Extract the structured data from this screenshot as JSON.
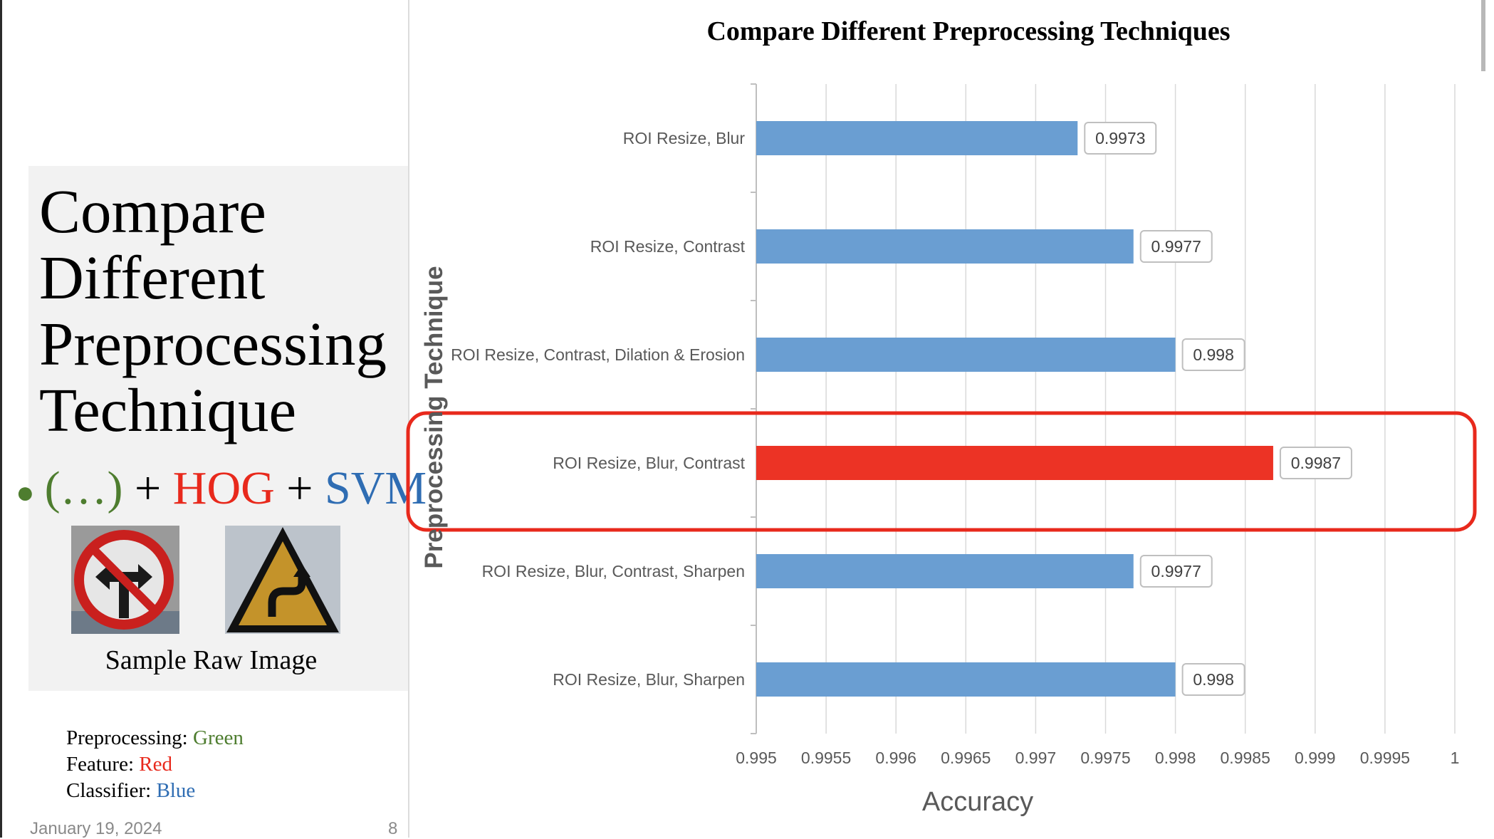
{
  "slide": {
    "heading_lines": [
      "Compare",
      "Different",
      "Preprocessing",
      "Technique"
    ],
    "bullet": {
      "part1": "(…)",
      "plus1": "+",
      "part2": "HOG",
      "plus2": "+",
      "part3": "SVM"
    },
    "sample_caption": "Sample Raw Image",
    "legend": [
      {
        "label": "Preprocessing:",
        "value": "Green",
        "color": "#4e7d2f"
      },
      {
        "label": "Feature:",
        "value": "Red",
        "color": "#e8291c"
      },
      {
        "label": "Classifier:",
        "value": "Blue",
        "color": "#2f6db3"
      }
    ],
    "date": "January 19, 2024",
    "page_number": "8",
    "sample_images": [
      "no-left-right-turn-sign-icon",
      "curve-warning-sign-icon"
    ]
  },
  "chart_data": {
    "type": "bar",
    "orientation": "horizontal",
    "title": "Compare Different Preprocessing Techniques",
    "xlabel": "Accuracy",
    "ylabel": "Preprocessing Technique",
    "xlim": [
      0.995,
      1
    ],
    "xticks": [
      "0.995",
      "0.9955",
      "0.996",
      "0.9965",
      "0.997",
      "0.9975",
      "0.998",
      "0.9985",
      "0.999",
      "0.9995",
      "1"
    ],
    "categories": [
      "ROI Resize, Blur",
      "ROI Resize, Contrast",
      "ROI Resize, Contrast, Dilation & Erosion",
      "ROI Resize, Blur, Contrast",
      "ROI Resize, Blur, Contrast, Sharpen",
      "ROI Resize, Blur, Sharpen"
    ],
    "values": [
      0.9973,
      0.9977,
      0.998,
      0.9987,
      0.9977,
      0.998
    ],
    "data_labels": [
      "0.9973",
      "0.9977",
      "0.998",
      "0.9987",
      "0.9977",
      "0.998"
    ],
    "highlight_index": 3,
    "grid": true,
    "colors": {
      "bar": "#6a9ed2",
      "highlight_bar": "#ec3325",
      "highlight_box": "#e8291c",
      "grid": "#d9d9d9",
      "tick_text": "#595959"
    }
  }
}
